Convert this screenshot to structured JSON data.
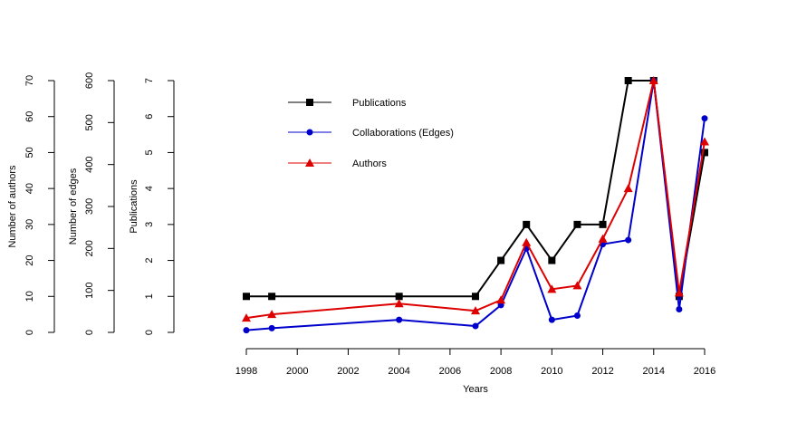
{
  "chart_data": {
    "type": "line",
    "title": "",
    "xlabel": "Years",
    "x": [
      1998,
      1999,
      2004,
      2007,
      2008,
      2009,
      2010,
      2011,
      2012,
      2013,
      2014,
      2015,
      2016
    ],
    "xticks": [
      1998,
      2000,
      2002,
      2004,
      2006,
      2008,
      2010,
      2012,
      2014,
      2016
    ],
    "xlim": [
      1998,
      2016
    ],
    "axes": [
      {
        "id": "authors",
        "label": "Number of authors",
        "ticks": [
          0,
          10,
          20,
          30,
          40,
          50,
          60,
          70
        ],
        "ylim": [
          0,
          70
        ]
      },
      {
        "id": "edges",
        "label": "Number of edges",
        "ticks": [
          0,
          100,
          200,
          300,
          400,
          500,
          600
        ],
        "ylim": [
          0,
          600
        ]
      },
      {
        "id": "publications",
        "label": "Publications",
        "ticks": [
          0,
          1,
          2,
          3,
          4,
          5,
          6,
          7
        ],
        "ylim": [
          0,
          7
        ]
      }
    ],
    "series": [
      {
        "name": "Publications",
        "axis": "publications",
        "color": "#000000",
        "marker": "square",
        "values": [
          1,
          1,
          1,
          1,
          2,
          3,
          2,
          3,
          3,
          7,
          7,
          1,
          5
        ]
      },
      {
        "name": "Collaborations (Edges)",
        "axis": "edges",
        "color": "#0000cc",
        "marker": "circle",
        "values": [
          5,
          10,
          30,
          15,
          65,
          200,
          30,
          40,
          210,
          220,
          600,
          55,
          510
        ]
      },
      {
        "name": "Authors",
        "axis": "authors",
        "color": "#dd0000",
        "marker": "triangle",
        "values": [
          4,
          5,
          8,
          6,
          9,
          25,
          12,
          13,
          26,
          40,
          70,
          11,
          53
        ]
      }
    ],
    "grid": false,
    "legend": "top-left"
  }
}
